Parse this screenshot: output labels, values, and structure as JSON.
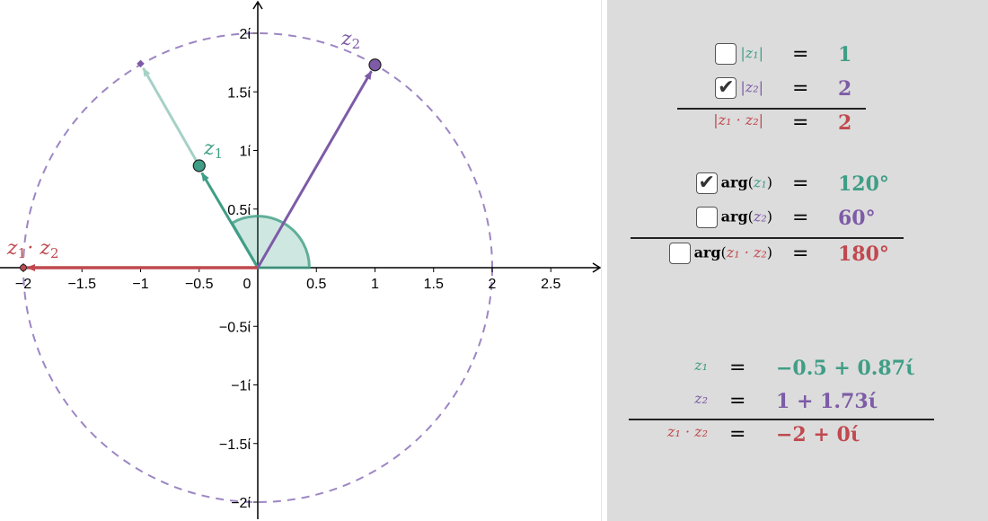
{
  "colors": {
    "z1": "#3f9e86",
    "z2": "#7d5ba6",
    "product": "#c0494f",
    "circle": "#9d86c4",
    "panel": "#dcdcdc"
  },
  "graph": {
    "x_ticks": [
      "−2",
      "−1.5",
      "−1",
      "−0.5",
      "0",
      "0.5",
      "1",
      "1.5",
      "2",
      "2.5"
    ],
    "x_tick_values": [
      -2,
      -1.5,
      -1,
      -0.5,
      0,
      0.5,
      1,
      1.5,
      2,
      2.5
    ],
    "y_ticks": [
      "2ί",
      "1.5ί",
      "1ί",
      "0.5ί",
      "−0.5ί",
      "−1ί",
      "−1.5ί",
      "−2ί"
    ],
    "y_tick_values": [
      2,
      1.5,
      1,
      0.5,
      -0.5,
      -1,
      -1.5,
      -2
    ],
    "z1": {
      "re": -0.5,
      "im": 0.87,
      "label": "z",
      "sub": "1"
    },
    "z2": {
      "re": 1,
      "im": 1.73,
      "label": "z",
      "sub": "2"
    },
    "product": {
      "re": -2,
      "im": 0,
      "label": "z",
      "sub1": "1",
      "op": "·",
      "sub2": "2"
    },
    "circle_radius": 2,
    "angle_degrees": 120
  },
  "panel": {
    "abs_z1": {
      "checked": false,
      "lhs": "|z₁|",
      "eq": "=",
      "value": "1"
    },
    "abs_z2": {
      "checked": true,
      "lhs": "|z₂|",
      "eq": "=",
      "value": "2"
    },
    "abs_prod": {
      "lhs": "|z₁ · z₂|",
      "eq": "=",
      "value": "2"
    },
    "arg_z1": {
      "checked": true,
      "fn": "arg",
      "arg": "z₁",
      "eq": "=",
      "value": "120°"
    },
    "arg_z2": {
      "checked": false,
      "fn": "arg",
      "arg": "z₂",
      "eq": "=",
      "value": "60°"
    },
    "arg_prod": {
      "checked": false,
      "fn": "arg",
      "arg": "z₁ · z₂",
      "eq": "=",
      "value": "180°"
    },
    "z1_val": {
      "lhs": "z₁",
      "eq": "=",
      "value": "−0.5 + 0.87ί"
    },
    "z2_val": {
      "lhs": "z₂",
      "eq": "=",
      "value": "1 + 1.73ί"
    },
    "prod_val": {
      "lhs": "z₁ · z₂",
      "eq": "=",
      "value": "−2 + 0ί"
    },
    "check_glyph": "✔"
  }
}
